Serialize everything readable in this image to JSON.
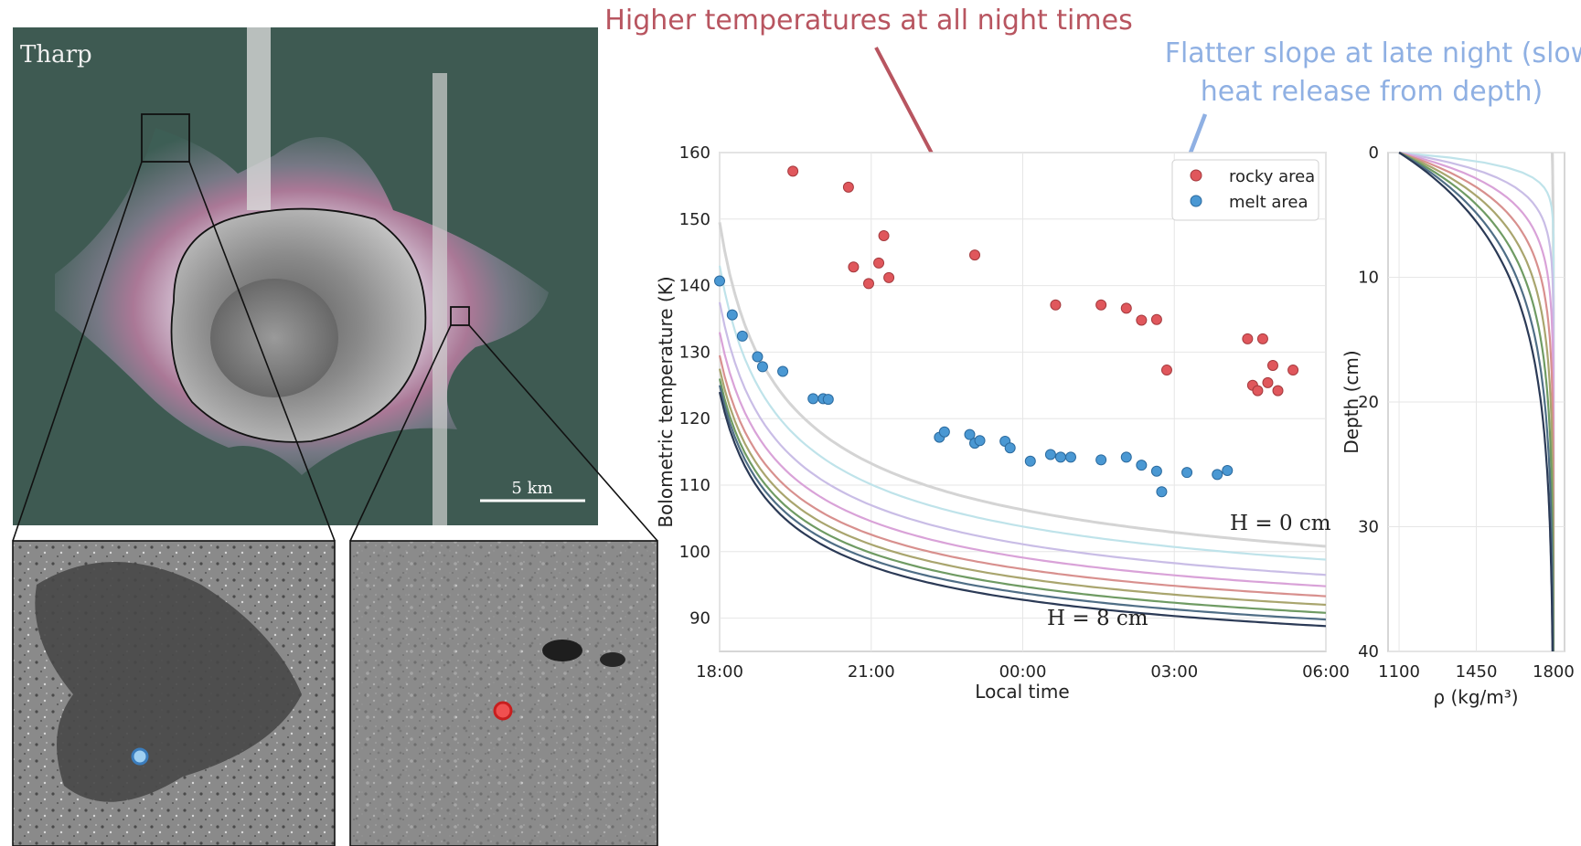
{
  "colors": {
    "rocky": "#e0575c",
    "melt": "#4a98d3",
    "annotation_red": "#b85560",
    "annotation_blue": "#8fb0e3",
    "model_curves": [
      "#d4d4d4",
      "#bfe3ea",
      "#c9bde6",
      "#d9a2d8",
      "#d8908e",
      "#a9a56e",
      "#6f9b63",
      "#4f6e86",
      "#2b3a56"
    ]
  },
  "map": {
    "title": "Tharp",
    "scalebar_label": "5 km"
  },
  "annotations": {
    "red": "Higher temperatures at all night times",
    "blue_line1": "Flatter slope at late night (slow",
    "blue_line2": "heat release from depth)"
  },
  "chart_data": [
    {
      "type": "scatter",
      "title": "",
      "xlabel": "Local time",
      "ylabel": "Bolometric temperature (K)",
      "xlim": [
        18,
        30
      ],
      "ylim": [
        85,
        160
      ],
      "x_ticks": [
        {
          "value": 18,
          "label": "18:00"
        },
        {
          "value": 21,
          "label": "21:00"
        },
        {
          "value": 24,
          "label": "00:00"
        },
        {
          "value": 27,
          "label": "03:00"
        },
        {
          "value": 30,
          "label": "06:00"
        }
      ],
      "y_ticks": [
        90,
        100,
        110,
        120,
        130,
        140,
        150,
        160
      ],
      "grid": true,
      "legend": {
        "placement": "top-right"
      },
      "series": [
        {
          "name": "rocky area",
          "x": [
            19.45,
            20.55,
            20.65,
            20.95,
            21.15,
            21.25,
            21.35,
            23.05,
            24.65,
            25.55,
            26.05,
            26.35,
            26.65,
            26.85,
            28.45,
            28.55,
            28.65,
            28.75,
            28.85,
            28.95,
            29.05,
            29.35
          ],
          "y": [
            157.2,
            154.8,
            142.8,
            140.3,
            143.4,
            147.5,
            141.2,
            144.6,
            137.1,
            137.1,
            136.6,
            134.8,
            134.9,
            127.3,
            132.0,
            125.0,
            124.2,
            132.0,
            125.4,
            128.0,
            124.2,
            127.3
          ]
        },
        {
          "name": "melt area",
          "x": [
            18.0,
            18.25,
            18.45,
            18.75,
            18.85,
            19.25,
            19.85,
            20.05,
            20.15,
            22.35,
            22.45,
            22.95,
            23.05,
            23.15,
            23.65,
            23.75,
            24.15,
            24.55,
            24.75,
            24.95,
            25.55,
            26.05,
            26.35,
            26.65,
            26.75,
            27.25,
            27.85,
            28.05
          ],
          "y": [
            140.7,
            135.6,
            132.4,
            129.3,
            127.8,
            127.1,
            123.0,
            123.0,
            122.9,
            117.2,
            118.0,
            117.6,
            116.3,
            116.7,
            116.6,
            115.6,
            113.6,
            114.6,
            114.2,
            114.2,
            113.8,
            114.2,
            113.0,
            112.1,
            109.0,
            111.9,
            111.6,
            112.2
          ]
        }
      ],
      "model_curves": [
        {
          "H": 0,
          "T_start": 149.5,
          "T_end": 100.8
        },
        {
          "H": 1,
          "T_start": 143.0,
          "T_end": 98.8
        },
        {
          "H": 2,
          "T_start": 137.5,
          "T_end": 96.5
        },
        {
          "H": 3,
          "T_start": 133.0,
          "T_end": 94.8
        },
        {
          "H": 4,
          "T_start": 129.5,
          "T_end": 93.3
        },
        {
          "H": 5,
          "T_start": 127.5,
          "T_end": 92.0
        },
        {
          "H": 6,
          "T_start": 126.0,
          "T_end": 90.8
        },
        {
          "H": 7,
          "T_start": 125.0,
          "T_end": 89.8
        },
        {
          "H": 8,
          "T_start": 124.0,
          "T_end": 88.8
        }
      ],
      "curve_label_top": "H = 0 cm",
      "curve_label_bottom": "H = 8 cm"
    },
    {
      "type": "line",
      "title": "",
      "xlabel": "ρ (kg/m³)",
      "ylabel": "Depth (cm)",
      "xlim": [
        1050,
        1850
      ],
      "ylim": [
        0,
        40
      ],
      "x_ticks": [
        1100,
        1450,
        1800
      ],
      "y_ticks": [
        0,
        10,
        20,
        30,
        40
      ],
      "grid": true,
      "profiles": [
        {
          "H": 0,
          "rho_s": 1800
        },
        {
          "H": 1,
          "rho_s": 1100
        },
        {
          "H": 2,
          "rho_s": 1100
        },
        {
          "H": 3,
          "rho_s": 1100
        },
        {
          "H": 4,
          "rho_s": 1100
        },
        {
          "H": 5,
          "rho_s": 1100
        },
        {
          "H": 6,
          "rho_s": 1100
        },
        {
          "H": 7,
          "rho_s": 1100
        },
        {
          "H": 8,
          "rho_s": 1100
        }
      ],
      "rho_d": 1800
    }
  ]
}
